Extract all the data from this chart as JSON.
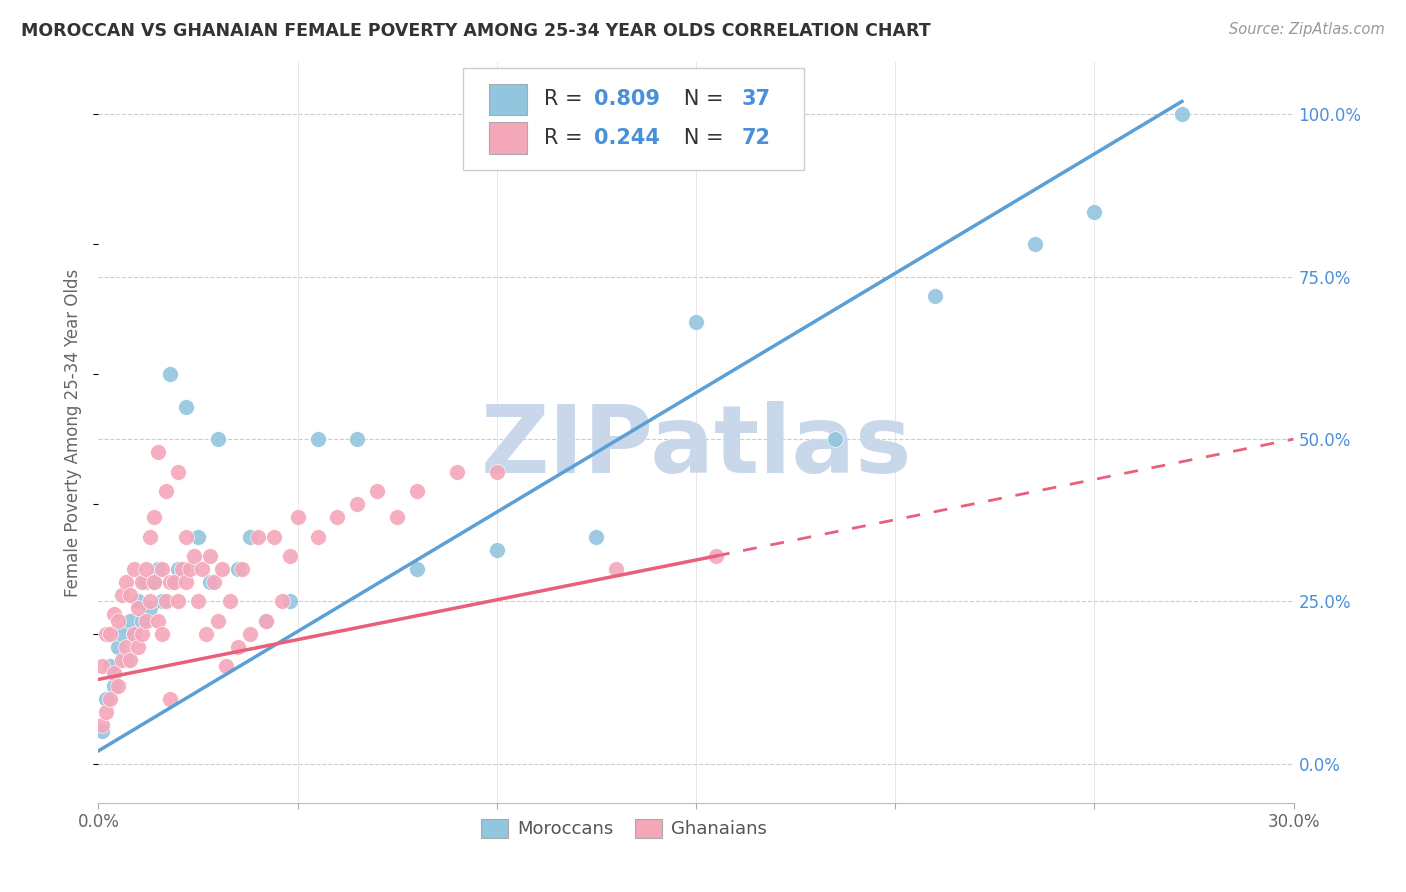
{
  "title": "MOROCCAN VS GHANAIAN FEMALE POVERTY AMONG 25-34 YEAR OLDS CORRELATION CHART",
  "source": "Source: ZipAtlas.com",
  "ylabel": "Female Poverty Among 25-34 Year Olds",
  "xlim": [
    0.0,
    0.3
  ],
  "ylim": [
    -0.06,
    1.08
  ],
  "yticks": [
    0.0,
    0.25,
    0.5,
    0.75,
    1.0
  ],
  "ytick_labels": [
    "0.0%",
    "25.0%",
    "50.0%",
    "75.0%",
    "100.0%"
  ],
  "xticks": [
    0.0,
    0.05,
    0.1,
    0.15,
    0.2,
    0.25,
    0.3
  ],
  "xtick_labels_show": [
    "0.0%",
    "30.0%"
  ],
  "moroccan_color": "#92c5de",
  "ghanaian_color": "#f4a7b9",
  "moroccan_line_color": "#5b9fd4",
  "ghanaian_line_color": "#e8607a",
  "moroccan_R": 0.809,
  "moroccan_N": 37,
  "ghanaian_R": 0.244,
  "ghanaian_N": 72,
  "watermark": "ZIPatlas",
  "watermark_color": "#c8d8ea",
  "moroccan_line_x0": 0.0,
  "moroccan_line_y0": 0.02,
  "moroccan_line_x1": 0.272,
  "moroccan_line_y1": 1.02,
  "ghanaian_line_solid_x0": 0.0,
  "ghanaian_line_solid_y0": 0.13,
  "ghanaian_line_solid_x1": 0.155,
  "ghanaian_line_solid_y1": 0.32,
  "ghanaian_line_dash_x0": 0.155,
  "ghanaian_line_dash_y0": 0.32,
  "ghanaian_line_dash_x1": 0.3,
  "ghanaian_line_dash_y1": 0.5,
  "moroccan_x": [
    0.001,
    0.002,
    0.003,
    0.004,
    0.005,
    0.006,
    0.007,
    0.008,
    0.009,
    0.01,
    0.011,
    0.012,
    0.013,
    0.014,
    0.015,
    0.016,
    0.018,
    0.02,
    0.022,
    0.025,
    0.028,
    0.03,
    0.035,
    0.038,
    0.042,
    0.048,
    0.055,
    0.065,
    0.08,
    0.1,
    0.125,
    0.15,
    0.185,
    0.21,
    0.235,
    0.25,
    0.272
  ],
  "moroccan_y": [
    0.05,
    0.1,
    0.15,
    0.12,
    0.18,
    0.2,
    0.16,
    0.22,
    0.2,
    0.25,
    0.22,
    0.28,
    0.24,
    0.28,
    0.3,
    0.25,
    0.6,
    0.3,
    0.55,
    0.35,
    0.28,
    0.5,
    0.3,
    0.35,
    0.22,
    0.25,
    0.5,
    0.5,
    0.3,
    0.33,
    0.35,
    0.68,
    0.5,
    0.72,
    0.8,
    0.85,
    1.0
  ],
  "ghanaian_x": [
    0.001,
    0.001,
    0.002,
    0.002,
    0.003,
    0.003,
    0.004,
    0.004,
    0.005,
    0.005,
    0.006,
    0.006,
    0.007,
    0.007,
    0.008,
    0.008,
    0.009,
    0.009,
    0.01,
    0.01,
    0.011,
    0.011,
    0.012,
    0.012,
    0.013,
    0.013,
    0.014,
    0.014,
    0.015,
    0.015,
    0.016,
    0.016,
    0.017,
    0.017,
    0.018,
    0.018,
    0.019,
    0.02,
    0.02,
    0.021,
    0.022,
    0.022,
    0.023,
    0.024,
    0.025,
    0.026,
    0.027,
    0.028,
    0.029,
    0.03,
    0.031,
    0.032,
    0.033,
    0.035,
    0.036,
    0.038,
    0.04,
    0.042,
    0.044,
    0.046,
    0.048,
    0.05,
    0.055,
    0.06,
    0.065,
    0.07,
    0.075,
    0.08,
    0.09,
    0.1,
    0.13,
    0.155
  ],
  "ghanaian_y": [
    0.06,
    0.15,
    0.08,
    0.2,
    0.1,
    0.2,
    0.14,
    0.23,
    0.12,
    0.22,
    0.16,
    0.26,
    0.18,
    0.28,
    0.16,
    0.26,
    0.2,
    0.3,
    0.18,
    0.24,
    0.2,
    0.28,
    0.22,
    0.3,
    0.25,
    0.35,
    0.28,
    0.38,
    0.22,
    0.48,
    0.3,
    0.2,
    0.25,
    0.42,
    0.28,
    0.1,
    0.28,
    0.25,
    0.45,
    0.3,
    0.28,
    0.35,
    0.3,
    0.32,
    0.25,
    0.3,
    0.2,
    0.32,
    0.28,
    0.22,
    0.3,
    0.15,
    0.25,
    0.18,
    0.3,
    0.2,
    0.35,
    0.22,
    0.35,
    0.25,
    0.32,
    0.38,
    0.35,
    0.38,
    0.4,
    0.42,
    0.38,
    0.42,
    0.45,
    0.45,
    0.3,
    0.32
  ]
}
